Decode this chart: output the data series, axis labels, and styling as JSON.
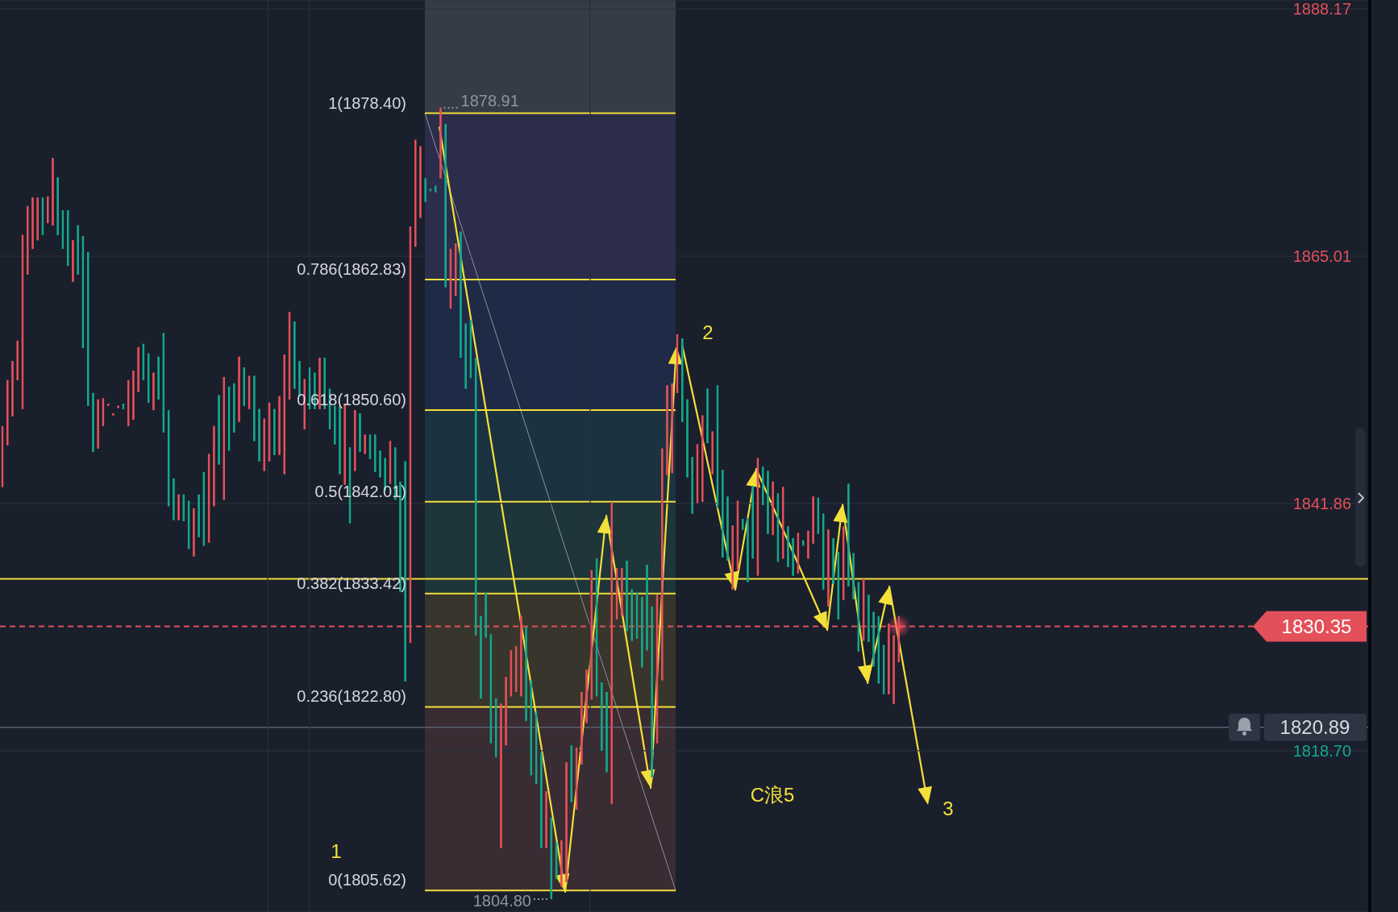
{
  "chart_data": {
    "type": "candlestick",
    "categories": [
      null,
      null,
      null,
      null,
      null,
      null,
      null,
      null,
      null,
      null,
      null,
      null,
      null,
      null,
      null,
      null,
      null,
      null,
      null,
      null,
      null,
      null,
      null,
      null,
      null,
      null,
      null,
      null,
      null,
      null,
      null,
      null,
      null,
      null,
      null,
      null,
      null,
      null,
      null,
      null,
      null,
      null,
      null,
      null,
      null,
      null,
      null,
      null,
      null,
      null,
      null,
      null,
      null,
      null,
      null,
      null,
      null,
      null,
      null,
      null,
      null,
      null,
      null,
      null,
      null,
      null,
      null,
      null,
      null,
      null,
      null,
      null,
      null,
      null,
      null,
      null,
      null,
      null,
      null,
      null,
      null,
      null,
      null,
      null,
      null,
      null,
      null,
      null,
      null,
      null,
      null,
      null,
      null,
      null,
      null,
      null,
      null,
      null,
      null,
      null,
      null,
      null,
      null,
      null,
      null,
      null,
      null,
      null,
      null,
      null,
      null,
      null,
      null,
      null,
      null,
      null,
      null,
      null,
      null,
      null,
      null,
      null,
      null,
      null,
      null,
      null,
      null,
      null,
      null,
      null,
      null,
      null,
      null,
      null,
      null,
      null,
      null,
      null,
      null,
      null,
      null,
      null,
      null,
      null,
      null,
      null,
      null,
      null,
      null,
      null,
      null,
      null,
      null,
      null,
      null,
      null,
      null,
      null,
      null,
      null,
      null,
      null,
      null,
      null,
      null,
      null,
      null,
      null,
      null,
      null,
      null,
      null,
      null,
      null,
      null,
      null,
      null,
      null,
      null,
      null,
      null,
      null,
      null,
      null,
      null,
      null,
      null,
      null,
      null,
      null,
      null,
      null,
      null,
      null,
      null,
      null,
      null,
      null,
      null,
      null,
      null,
      null,
      null,
      null,
      null,
      null,
      null,
      null,
      null,
      null,
      null,
      null,
      null,
      null,
      null,
      null,
      null,
      null,
      null,
      null,
      null,
      null,
      null,
      null,
      null,
      null,
      null,
      null,
      null,
      null,
      null,
      null,
      null,
      null,
      null,
      null,
      null,
      null,
      null,
      null,
      null,
      null,
      null,
      null,
      null,
      null,
      null,
      null,
      null,
      null,
      null,
      null,
      null,
      null,
      null,
      null,
      null,
      null,
      null,
      null,
      null,
      null,
      null,
      null,
      null,
      null,
      null,
      null,
      null,
      null,
      null,
      null
    ],
    "ohlc": [
      [
        1843.4,
        1849.1,
        1843.4,
        1849.1
      ],
      [
        1847.3,
        1853.4,
        1847.3,
        1853.4
      ],
      [
        1850.0,
        1855.2,
        1850.0,
        1855.2
      ],
      [
        1853.4,
        1857.1,
        1853.4,
        1857.1
      ],
      [
        1850.7,
        1867.0,
        1850.7,
        1867.0
      ],
      [
        1863.3,
        1869.7,
        1863.3,
        1869.7
      ],
      [
        1865.7,
        1870.5,
        1865.7,
        1870.5
      ],
      [
        1866.5,
        1870.5,
        1866.5,
        1870.5
      ],
      [
        1870.5,
        1870.5,
        1867.0,
        1867.0
      ],
      [
        1868.1,
        1870.6,
        1868.1,
        1870.6
      ],
      [
        1867.9,
        1874.2,
        1867.9,
        1874.2
      ],
      [
        1872.4,
        1872.4,
        1867.0,
        1867.0
      ],
      [
        1869.3,
        1869.3,
        1865.7,
        1865.7
      ],
      [
        1869.3,
        1869.3,
        1864.1,
        1864.1
      ],
      [
        1862.6,
        1866.5,
        1862.6,
        1866.5
      ],
      [
        1867.9,
        1867.9,
        1863.3,
        1863.3
      ],
      [
        1866.9,
        1866.9,
        1856.4,
        1856.4
      ],
      [
        1865.4,
        1865.4,
        1851.0,
        1851.0
      ],
      [
        1852.2,
        1852.2,
        1846.7,
        1846.7
      ],
      [
        1847.0,
        1851.6,
        1847.0,
        1851.6
      ],
      [
        1849.1,
        1851.7,
        1849.1,
        1851.7
      ],
      [
        1851.0,
        1851.2,
        1851.0,
        1851.2
      ],
      [
        1850.1,
        1850.3,
        1850.1,
        1850.3
      ],
      [
        1850.8,
        1851.0,
        1850.8,
        1851.0
      ],
      [
        1851.2,
        1851.2,
        1850.7,
        1850.7
      ],
      [
        1849.1,
        1853.4,
        1849.1,
        1853.4
      ],
      [
        1849.7,
        1854.3,
        1849.7,
        1854.3
      ],
      [
        1852.3,
        1856.5,
        1852.3,
        1856.5
      ],
      [
        1856.8,
        1856.8,
        1853.4,
        1853.4
      ],
      [
        1855.9,
        1855.9,
        1851.3,
        1851.3
      ],
      [
        1850.6,
        1854.1,
        1850.6,
        1854.1
      ],
      [
        1855.6,
        1855.6,
        1851.6,
        1851.6
      ],
      [
        1857.8,
        1857.8,
        1848.5,
        1848.5
      ],
      [
        1850.6,
        1850.6,
        1841.6,
        1841.6
      ],
      [
        1844.2,
        1844.2,
        1840.3,
        1840.3
      ],
      [
        1840.3,
        1842.7,
        1840.3,
        1842.7
      ],
      [
        1842.7,
        1842.7,
        1840.2,
        1840.2
      ],
      [
        1842.1,
        1842.1,
        1837.6,
        1837.6
      ],
      [
        1836.9,
        1841.4,
        1836.9,
        1841.4
      ],
      [
        1842.7,
        1842.7,
        1838.7,
        1838.7
      ],
      [
        1844.8,
        1844.8,
        1837.9,
        1837.9
      ],
      [
        1838.2,
        1846.5,
        1838.2,
        1846.5
      ],
      [
        1841.6,
        1849.1,
        1841.6,
        1849.1
      ],
      [
        1852.0,
        1852.0,
        1845.5,
        1845.5
      ],
      [
        1842.2,
        1853.7,
        1842.2,
        1853.7
      ],
      [
        1852.8,
        1852.8,
        1846.8,
        1846.8
      ],
      [
        1853.1,
        1853.1,
        1848.5,
        1848.5
      ],
      [
        1849.5,
        1855.6,
        1849.5,
        1855.6
      ],
      [
        1854.6,
        1854.6,
        1851.0,
        1851.0
      ],
      [
        1850.7,
        1853.8,
        1850.7,
        1853.8
      ],
      [
        1853.8,
        1853.8,
        1847.7,
        1847.7
      ],
      [
        1850.7,
        1850.7,
        1845.8,
        1845.8
      ],
      [
        1844.9,
        1849.8,
        1844.9,
        1849.8
      ],
      [
        1845.8,
        1851.3,
        1845.8,
        1851.3
      ],
      [
        1850.7,
        1850.7,
        1846.4,
        1846.4
      ],
      [
        1846.4,
        1851.9,
        1846.4,
        1851.9
      ],
      [
        1844.6,
        1855.8,
        1844.6,
        1855.8
      ],
      [
        1851.6,
        1859.8,
        1851.6,
        1859.8
      ],
      [
        1858.9,
        1858.9,
        1852.6,
        1852.6
      ],
      [
        1855.2,
        1855.2,
        1851.9,
        1851.9
      ],
      [
        1848.8,
        1853.5,
        1848.8,
        1853.5
      ],
      [
        1854.6,
        1854.6,
        1850.7,
        1850.7
      ],
      [
        1854.1,
        1854.1,
        1850.7,
        1850.7
      ],
      [
        1850.7,
        1855.5,
        1850.7,
        1855.5
      ],
      [
        1855.5,
        1855.5,
        1850.7,
        1850.7
      ],
      [
        1852.6,
        1852.6,
        1848.8,
        1848.8
      ],
      [
        1851.0,
        1851.0,
        1847.4,
        1847.4
      ],
      [
        1851.0,
        1851.0,
        1844.6,
        1844.6
      ],
      [
        1843.6,
        1851.2,
        1843.6,
        1851.2
      ],
      [
        1847.1,
        1847.1,
        1840.0,
        1840.0
      ],
      [
        1844.9,
        1850.6,
        1844.9,
        1850.6
      ],
      [
        1850.3,
        1850.3,
        1846.7,
        1846.7
      ],
      [
        1846.5,
        1848.3,
        1846.5,
        1848.3
      ],
      [
        1848.3,
        1848.3,
        1846.0,
        1846.0
      ],
      [
        1848.3,
        1848.3,
        1844.8,
        1844.8
      ],
      [
        1846.8,
        1846.8,
        1844.3,
        1844.3
      ],
      [
        1846.1,
        1846.1,
        1843.1,
        1843.1
      ],
      [
        1843.7,
        1847.7,
        1843.7,
        1847.7
      ],
      [
        1847.1,
        1847.1,
        1842.2,
        1842.2
      ],
      [
        1843.9,
        1843.9,
        1833.6,
        1833.6
      ],
      [
        1845.8,
        1845.8,
        1825.2,
        1825.2
      ],
      [
        1828.8,
        1867.8,
        1828.8,
        1867.8
      ],
      [
        1865.9,
        1875.9,
        1865.9,
        1875.9
      ],
      [
        1868.6,
        1875.3,
        1868.6,
        1875.3
      ],
      [
        1872.3,
        1872.3,
        1870.1,
        1870.1
      ],
      [
        1871.3,
        1871.3,
        1871.1,
        1871.1
      ],
      [
        1871.6,
        1871.6,
        1871.0,
        1871.0
      ],
      [
        1872.3,
        1878.91,
        1872.3,
        1878.91
      ],
      [
        1877.4,
        1877.4,
        1862.1,
        1862.1
      ],
      [
        1860.1,
        1865.7,
        1860.1,
        1865.7
      ],
      [
        1861.3,
        1866.2,
        1861.3,
        1866.2
      ],
      [
        1867.3,
        1867.3,
        1855.5,
        1855.5
      ],
      [
        1858.7,
        1858.7,
        1852.6,
        1852.6
      ],
      [
        1859.0,
        1859.0,
        1853.6,
        1853.6
      ],
      [
        1855.5,
        1855.5,
        1829.5,
        1829.5
      ],
      [
        1831.3,
        1831.3,
        1823.6,
        1823.6
      ],
      [
        1833.5,
        1833.5,
        1829.3,
        1829.3
      ],
      [
        1829.6,
        1829.6,
        1819.4,
        1819.4
      ],
      [
        1823.6,
        1823.6,
        1818.1,
        1818.1
      ],
      [
        1809.6,
        1823.1,
        1809.6,
        1823.1
      ],
      [
        1819.2,
        1825.6,
        1819.2,
        1825.6
      ],
      [
        1823.8,
        1828.1,
        1823.8,
        1828.1
      ],
      [
        1824.2,
        1828.5,
        1824.2,
        1828.5
      ],
      [
        1823.8,
        1831.3,
        1823.8,
        1831.3
      ],
      [
        1830.3,
        1830.3,
        1821.5,
        1821.5
      ],
      [
        1825.3,
        1825.3,
        1816.4,
        1816.4
      ],
      [
        1822.4,
        1822.4,
        1815.6,
        1815.6
      ],
      [
        1818.5,
        1818.5,
        1809.6,
        1809.6
      ],
      [
        1809.6,
        1814.9,
        1809.6,
        1814.9
      ],
      [
        1812.4,
        1812.4,
        1804.8,
        1804.8
      ],
      [
        1810.1,
        1810.1,
        1806.7,
        1806.7
      ],
      [
        1806.0,
        1810.3,
        1806.0,
        1810.3
      ],
      [
        1806.4,
        1817.6,
        1806.4,
        1817.6
      ],
      [
        1819.2,
        1819.2,
        1813.9,
        1813.9
      ],
      [
        1813.2,
        1819.0,
        1813.2,
        1819.0
      ],
      [
        1817.4,
        1824.2,
        1817.4,
        1824.2
      ],
      [
        1821.3,
        1826.3,
        1821.3,
        1826.3
      ],
      [
        1823.5,
        1835.6,
        1823.5,
        1835.6
      ],
      [
        1836.7,
        1836.7,
        1823.8,
        1823.8
      ],
      [
        1825.1,
        1825.1,
        1818.7,
        1818.7
      ],
      [
        1824.2,
        1824.2,
        1816.7,
        1816.7
      ],
      [
        1813.7,
        1842.0,
        1813.7,
        1842.0
      ],
      [
        1831.0,
        1835.8,
        1831.0,
        1835.8
      ],
      [
        1831.3,
        1835.8,
        1831.3,
        1835.8
      ],
      [
        1836.5,
        1836.5,
        1829.9,
        1829.9
      ],
      [
        1833.8,
        1833.8,
        1829.0,
        1829.0
      ],
      [
        1833.5,
        1833.5,
        1829.2,
        1829.2
      ],
      [
        1833.1,
        1833.1,
        1826.5,
        1826.5
      ],
      [
        1836.1,
        1836.1,
        1828.1,
        1828.1
      ],
      [
        1832.2,
        1832.2,
        1816.2,
        1816.2
      ],
      [
        1819.4,
        1833.3,
        1819.4,
        1833.3
      ],
      [
        1825.3,
        1847.0,
        1825.3,
        1847.0
      ],
      [
        1844.5,
        1852.9,
        1844.5,
        1852.9
      ],
      [
        1844.7,
        1853.1,
        1844.7,
        1853.1
      ],
      [
        1852.2,
        1857.7,
        1852.2,
        1857.7
      ],
      [
        1857.3,
        1857.3,
        1849.5,
        1849.5
      ],
      [
        1851.6,
        1851.6,
        1844.3,
        1844.3
      ],
      [
        1846.2,
        1846.2,
        1840.9,
        1840.9
      ],
      [
        1841.9,
        1847.4,
        1841.9,
        1847.4
      ],
      [
        1842.0,
        1850.1,
        1842.0,
        1850.1
      ],
      [
        1852.6,
        1852.6,
        1847.5,
        1847.5
      ],
      [
        1844.6,
        1848.6,
        1844.6,
        1848.6
      ],
      [
        1852.9,
        1852.9,
        1841.4,
        1841.4
      ],
      [
        1845.0,
        1845.0,
        1836.8,
        1836.8
      ],
      [
        1842.5,
        1842.5,
        1836.5,
        1836.5
      ],
      [
        1833.8,
        1839.8,
        1833.8,
        1839.8
      ],
      [
        1835.6,
        1842.1,
        1835.6,
        1842.1
      ],
      [
        1840.4,
        1840.4,
        1839.4,
        1839.4
      ],
      [
        1840.5,
        1840.5,
        1834.5,
        1834.5
      ],
      [
        1843.5,
        1843.5,
        1836.7,
        1836.7
      ],
      [
        1835.1,
        1846.1,
        1835.1,
        1846.1
      ],
      [
        1845.3,
        1845.3,
        1841.7,
        1841.7
      ],
      [
        1844.9,
        1844.9,
        1839.0,
        1839.0
      ],
      [
        1838.9,
        1843.9,
        1838.9,
        1843.9
      ],
      [
        1842.8,
        1842.8,
        1836.4,
        1836.4
      ],
      [
        1836.7,
        1843.4,
        1836.7,
        1843.4
      ],
      [
        1839.7,
        1839.7,
        1835.9,
        1835.9
      ],
      [
        1838.6,
        1838.6,
        1835.1,
        1835.1
      ],
      [
        1835.3,
        1839.1,
        1835.3,
        1839.1
      ],
      [
        1838.4,
        1838.4,
        1837.9,
        1837.9
      ],
      [
        1836.7,
        1839.3,
        1836.7,
        1839.3
      ],
      [
        1838.1,
        1842.5,
        1838.1,
        1842.5
      ],
      [
        1842.4,
        1842.4,
        1839.0,
        1839.0
      ],
      [
        1840.9,
        1840.9,
        1833.8,
        1833.8
      ],
      [
        1832.2,
        1839.4,
        1832.2,
        1839.4
      ],
      [
        1838.6,
        1838.6,
        1834.3,
        1834.3
      ],
      [
        1837.3,
        1837.3,
        1831.0,
        1831.0
      ],
      [
        1832.8,
        1839.7,
        1832.8,
        1839.7
      ],
      [
        1843.7,
        1843.7,
        1834.1,
        1834.1
      ],
      [
        1837.2,
        1837.2,
        1832.9,
        1832.9
      ],
      [
        1834.5,
        1834.5,
        1828.0,
        1828.0
      ],
      [
        1829.0,
        1834.8,
        1829.0,
        1834.8
      ],
      [
        1833.3,
        1833.3,
        1828.9,
        1828.9
      ],
      [
        1831.7,
        1831.7,
        1826.6,
        1826.6
      ],
      [
        1831.3,
        1831.3,
        1825.0,
        1825.0
      ],
      [
        1828.6,
        1828.6,
        1824.0,
        1824.0
      ],
      [
        1824.0,
        1830.6,
        1824.0,
        1830.6
      ],
      [
        1823.1,
        1829.5,
        1823.1,
        1829.5
      ],
      [
        1827.0,
        1831.3,
        1827.0,
        1830.35
      ],
      null,
      null,
      null,
      null,
      null,
      null,
      null,
      null,
      null,
      null,
      null,
      null,
      null,
      null,
      null,
      null,
      null,
      null,
      null,
      null,
      null,
      null,
      null,
      null,
      null,
      null,
      null,
      null,
      null,
      null,
      null,
      null,
      null,
      null,
      null,
      null,
      null,
      null,
      null,
      null,
      null,
      null,
      null,
      null,
      null,
      null,
      null,
      null,
      null,
      null,
      null,
      null,
      null,
      null,
      null,
      null,
      null,
      null,
      null,
      null,
      null,
      null,
      null,
      null,
      null,
      null,
      null,
      null,
      null,
      null,
      null,
      null,
      null,
      null,
      null,
      null,
      null,
      null,
      null,
      null,
      null,
      null,
      null,
      null,
      null,
      null,
      null,
      null,
      null,
      null,
      null,
      null,
      null
    ],
    "colors": [
      "#e3505a",
      "#e3505a",
      "#e3505a",
      "#e3505a",
      "#e3505a",
      "#e3505a",
      "#e3505a",
      "#e3505a",
      "#13a88c",
      "#e3505a",
      "#e3505a",
      "#13a88c",
      "#13a88c",
      "#13a88c",
      "#e3505a",
      "#13a88c",
      "#13a88c",
      "#13a88c",
      "#13a88c",
      "#e3505a",
      "#e3505a",
      "#e3505a",
      "#e3505a",
      "#e3505a",
      "#13a88c",
      "#e3505a",
      "#e3505a",
      "#e3505a",
      "#13a88c",
      "#13a88c",
      "#e3505a",
      "#13a88c",
      "#13a88c",
      "#13a88c",
      "#13a88c",
      "#e3505a",
      "#13a88c",
      "#13a88c",
      "#e3505a",
      "#13a88c",
      "#13a88c",
      "#e3505a",
      "#e3505a",
      "#13a88c",
      "#e3505a",
      "#13a88c",
      "#13a88c",
      "#e3505a",
      "#13a88c",
      "#e3505a",
      "#13a88c",
      "#13a88c",
      "#e3505a",
      "#e3505a",
      "#13a88c",
      "#e3505a",
      "#e3505a",
      "#e3505a",
      "#13a88c",
      "#13a88c",
      "#e3505a",
      "#13a88c",
      "#13a88c",
      "#e3505a",
      "#13a88c",
      "#13a88c",
      "#13a88c",
      "#13a88c",
      "#e3505a",
      "#13a88c",
      "#e3505a",
      "#13a88c",
      "#e3505a",
      "#13a88c",
      "#13a88c",
      "#13a88c",
      "#13a88c",
      "#e3505a",
      "#13a88c",
      "#13a88c",
      "#13a88c",
      "#e3505a",
      "#e3505a",
      "#e3505a",
      "#13a88c",
      "#13a88c",
      "#13a88c",
      "#e3505a",
      "#13a88c",
      "#e3505a",
      "#e3505a",
      "#13a88c",
      "#13a88c",
      "#13a88c",
      "#13a88c",
      "#13a88c",
      "#13a88c",
      "#13a88c",
      "#13a88c",
      "#e3505a",
      "#e3505a",
      "#e3505a",
      "#e3505a",
      "#e3505a",
      "#13a88c",
      "#13a88c",
      "#13a88c",
      "#13a88c",
      "#e3505a",
      "#13a88c",
      "#13a88c",
      "#e3505a",
      "#e3505a",
      "#13a88c",
      "#e3505a",
      "#e3505a",
      "#e3505a",
      "#e3505a",
      "#13a88c",
      "#13a88c",
      "#13a88c",
      "#e3505a",
      "#e3505a",
      "#e3505a",
      "#13a88c",
      "#13a88c",
      "#13a88c",
      "#13a88c",
      "#13a88c",
      "#13a88c",
      "#e3505a",
      "#e3505a",
      "#e3505a",
      "#e3505a",
      "#e3505a",
      "#13a88c",
      "#13a88c",
      "#13a88c",
      "#e3505a",
      "#e3505a",
      "#13a88c",
      "#e3505a",
      "#13a88c",
      "#13a88c",
      "#13a88c",
      "#e3505a",
      "#e3505a",
      "#13a88c",
      "#13a88c",
      "#13a88c",
      "#e3505a",
      "#13a88c",
      "#13a88c",
      "#e3505a",
      "#13a88c",
      "#e3505a",
      "#13a88c",
      "#13a88c",
      "#e3505a",
      "#13a88c",
      "#e3505a",
      "#e3505a",
      "#13a88c",
      "#13a88c",
      "#e3505a",
      "#13a88c",
      "#13a88c",
      "#e3505a",
      "#13a88c",
      "#13a88c",
      "#13a88c",
      "#e3505a",
      "#13a88c",
      "#13a88c",
      "#13a88c",
      "#13a88c",
      "#e3505a",
      "#e3505a",
      "#e3505a",
      null,
      null,
      null,
      null,
      null,
      null,
      null,
      null,
      null,
      null,
      null,
      null,
      null,
      null,
      null,
      null,
      null,
      null,
      null,
      null,
      null,
      null,
      null,
      null,
      null,
      null,
      null,
      null,
      null,
      null,
      null,
      null,
      null,
      null,
      null,
      null,
      null,
      null,
      null,
      null,
      null,
      null,
      null,
      null,
      null,
      null,
      null,
      null,
      null,
      null,
      null,
      null,
      null,
      null,
      null,
      null,
      null,
      null,
      null,
      null,
      null,
      null,
      null,
      null,
      null,
      null,
      null,
      null,
      null,
      null,
      null,
      null,
      null,
      null,
      null,
      null,
      null,
      null,
      null,
      null,
      null,
      null,
      null,
      null,
      null,
      null,
      null,
      null,
      null,
      null,
      null,
      null,
      null
    ],
    "ylim": [
      1803.6,
      1889.0
    ],
    "yticks": [
      1888.17,
      1865.01,
      1841.86,
      {
        "value": 1818.7,
        "label": "1818.70"
      }
    ],
    "grid": true,
    "tick_labels": "y",
    "ref_lines": [
      {
        "axis": "y",
        "value": 1878.4,
        "label": "1(1878.40)",
        "color": "#f2df3a"
      },
      {
        "axis": "y",
        "value": 1862.83,
        "label": "0.786(1862.83)",
        "color": "#f2df3a"
      },
      {
        "axis": "y",
        "value": 1850.6,
        "label": "0.618(1850.60)",
        "color": "#f2df3a"
      },
      {
        "axis": "y",
        "value": 1842.01,
        "label": "0.5(1842.01)",
        "color": "#f2df3a"
      },
      {
        "axis": "y",
        "value": 1833.42,
        "label": "0.382(1833.42)",
        "color": "#f2df3a"
      },
      {
        "axis": "y",
        "value": 1822.8,
        "label": "0.236(1822.80)",
        "color": "#f2df3a"
      },
      {
        "axis": "y",
        "value": 1805.62,
        "label": "0(1805.62)",
        "color": "#f2df3a"
      },
      {
        "axis": "y",
        "value": 1834.8,
        "color": "#f2df3a"
      },
      {
        "axis": "y",
        "value": 1830.35,
        "label": "1830.35",
        "color": "#e3505a",
        "line_style": "dashed"
      },
      {
        "axis": "y",
        "value": 1820.89,
        "label": "1820.89",
        "color": "#5b6170"
      }
    ],
    "bands": [
      {
        "axis": "y",
        "from": 1878.4,
        "to": 1889.0,
        "color": "#363b48"
      },
      {
        "axis": "y",
        "from": 1862.83,
        "to": 1878.4,
        "color": "#2c2d4a"
      },
      {
        "axis": "y",
        "from": 1850.6,
        "to": 1862.83,
        "color": "#1f2a46"
      },
      {
        "axis": "y",
        "from": 1842.01,
        "to": 1850.6,
        "color": "#1b3340"
      },
      {
        "axis": "y",
        "from": 1833.42,
        "to": 1842.01,
        "color": "#1e3539"
      },
      {
        "axis": "y",
        "from": 1822.8,
        "to": 1833.42,
        "color": "#38352c"
      },
      {
        "axis": "y",
        "from": 1805.62,
        "to": 1822.8,
        "color": "#392c33"
      }
    ],
    "annotations": [
      "1878.91",
      "1804.80",
      "1",
      "2",
      "3",
      "C浪5"
    ]
  }
}
